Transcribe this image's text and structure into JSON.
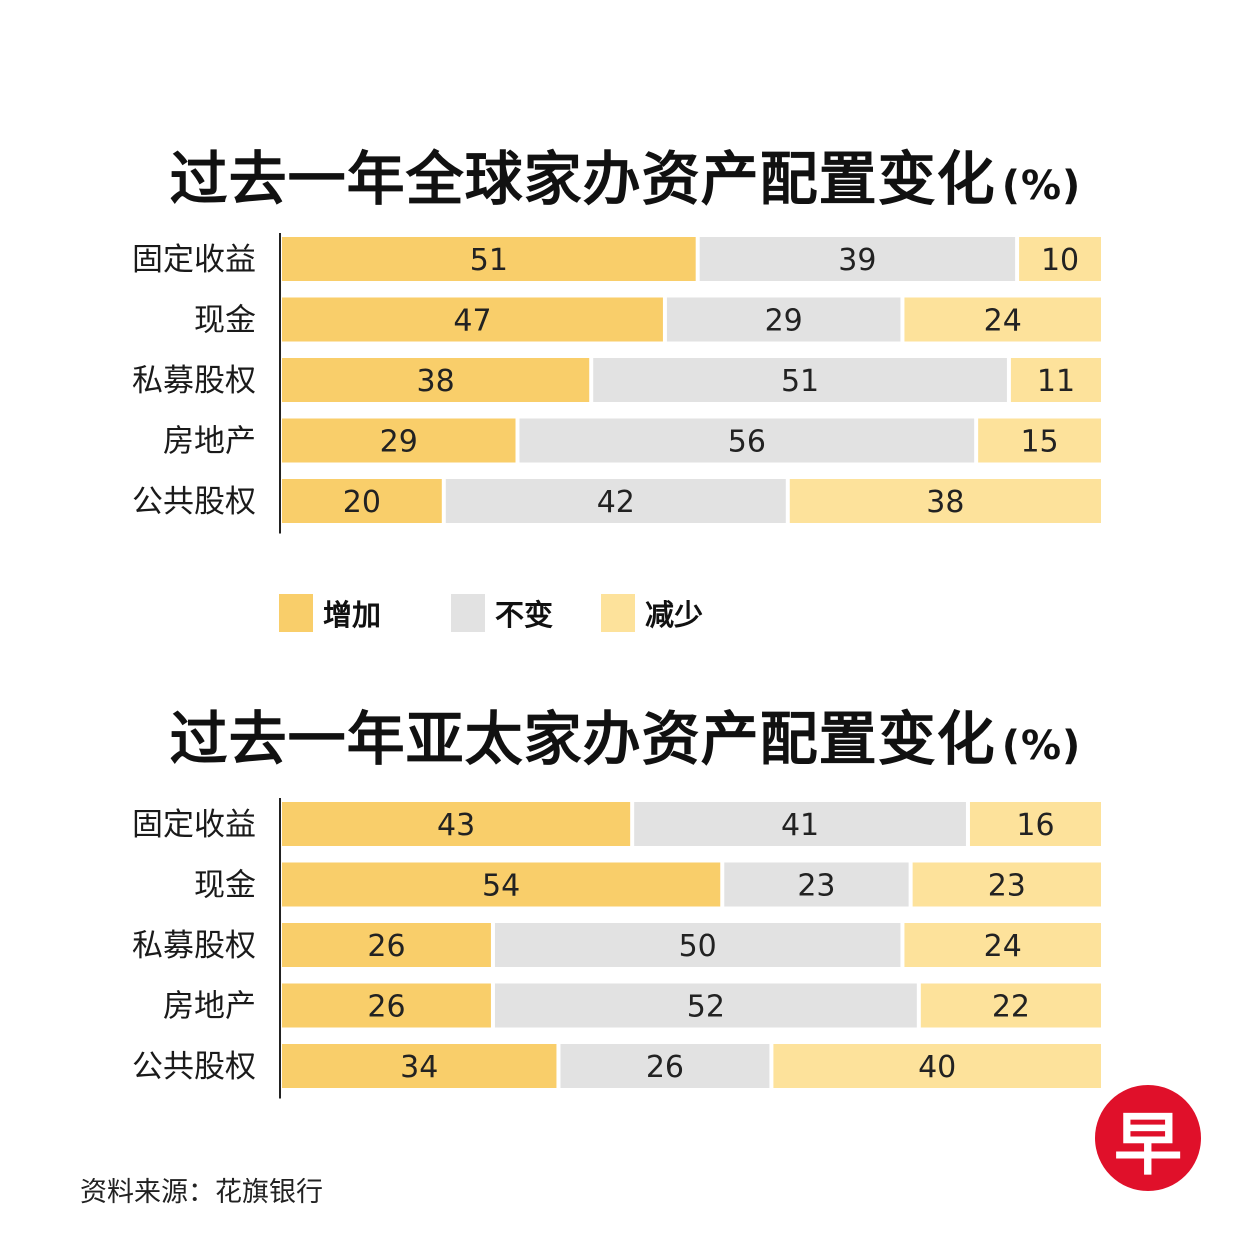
{
  "colors": {
    "increase": "#f9ce6a",
    "unchanged": "#e2e2e2",
    "decrease": "#fde29b"
  },
  "charts": {
    "global": {
      "title": "过去一年全球家办资产配置变化",
      "unit": "(%)"
    },
    "apac": {
      "title": "过去一年亚太家办资产配置变化",
      "unit": "(%)"
    }
  },
  "legend": {
    "increase": "增加",
    "unchanged": "不变",
    "decrease": "减少"
  },
  "source": "资料来源：花旗银行",
  "logo": "早",
  "chart_data": [
    {
      "type": "bar",
      "stacked": true,
      "orientation": "horizontal",
      "title": "过去一年全球家办资产配置变化(%)",
      "categories": [
        "固定收益",
        "现金",
        "私募股权",
        "房地产",
        "公共股权"
      ],
      "series": [
        {
          "name": "增加",
          "values": [
            51,
            47,
            38,
            29,
            20
          ]
        },
        {
          "name": "不变",
          "values": [
            39,
            29,
            51,
            56,
            42
          ]
        },
        {
          "name": "减少",
          "values": [
            10,
            24,
            11,
            15,
            38
          ]
        }
      ],
      "xlim": [
        0,
        100
      ],
      "grid": false,
      "legend_position": "bottom"
    },
    {
      "type": "bar",
      "stacked": true,
      "orientation": "horizontal",
      "title": "过去一年亚太家办资产配置变化(%)",
      "categories": [
        "固定收益",
        "现金",
        "私募股权",
        "房地产",
        "公共股权"
      ],
      "series": [
        {
          "name": "增加",
          "values": [
            43,
            54,
            26,
            26,
            34
          ]
        },
        {
          "name": "不变",
          "values": [
            41,
            23,
            50,
            52,
            26
          ]
        },
        {
          "name": "减少",
          "values": [
            16,
            23,
            24,
            22,
            40
          ]
        }
      ],
      "xlim": [
        0,
        100
      ],
      "grid": false,
      "legend_position": "bottom"
    }
  ]
}
